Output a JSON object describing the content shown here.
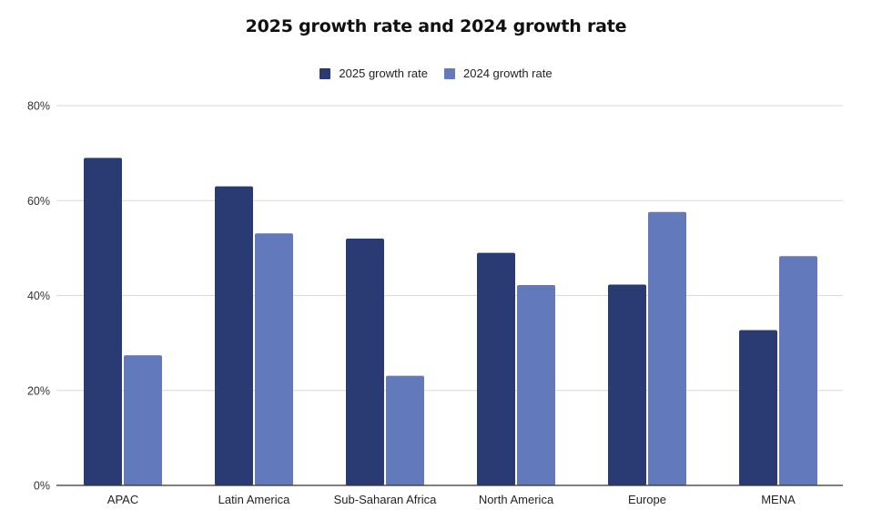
{
  "chart_data": {
    "type": "bar",
    "title": "2025 growth rate and 2024 growth rate",
    "xlabel": "",
    "ylabel": "",
    "categories": [
      "APAC",
      "Latin America",
      "Sub-Saharan Africa",
      "North America",
      "Europe",
      "MENA"
    ],
    "series": [
      {
        "name": "2025 growth rate",
        "color": "#2a3a73",
        "values": [
          69,
          63,
          52,
          49,
          42.3,
          32.7
        ]
      },
      {
        "name": "2024 growth rate",
        "color": "#6279bc",
        "values": [
          27.4,
          53.1,
          23.1,
          42.2,
          57.6,
          48.3
        ]
      }
    ],
    "ylim": [
      0,
      80
    ],
    "yticks": [
      0,
      20,
      40,
      60,
      80
    ],
    "ytick_labels": [
      "0%",
      "20%",
      "40%",
      "60%",
      "80%"
    ],
    "grid": true,
    "legend_position": "top-center"
  }
}
